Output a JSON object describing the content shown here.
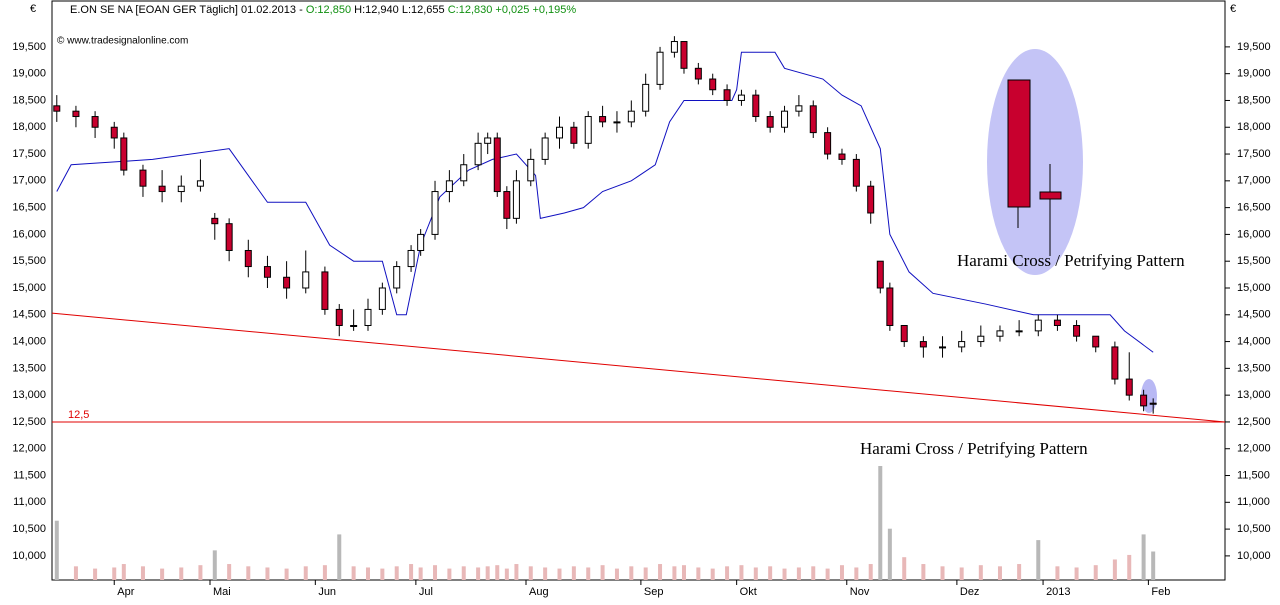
{
  "chart_data": {
    "type": "candlestick",
    "header": {
      "instrument": "E.ON SE NA [EOAN GER  Täglich] 01.02.2013 -",
      "open": "O:12,850",
      "hl": "H:12,940 L:12,655",
      "close": "C:12,830 +0,025 +0,195%"
    },
    "copyright": "© www.tradesignalonline.com",
    "currency": "€",
    "annotations": [
      "Harami Cross / Petrifying Pattern",
      "Harami Cross / Petrifying Pattern"
    ],
    "xlim": [
      -1,
      244
    ],
    "xticks": [
      {
        "value": 12,
        "label": "Apr"
      },
      {
        "value": 32,
        "label": "Mai"
      },
      {
        "value": 54,
        "label": "Jun"
      },
      {
        "value": 75,
        "label": "Jul"
      },
      {
        "value": 98,
        "label": "Aug"
      },
      {
        "value": 122,
        "label": "Sep"
      },
      {
        "value": 142,
        "label": "Okt"
      },
      {
        "value": 165,
        "label": "Nov"
      },
      {
        "value": 188,
        "label": "Dez"
      },
      {
        "value": 206,
        "label": "2013"
      },
      {
        "value": 228,
        "label": "Feb"
      }
    ],
    "ylim": [
      9550,
      20375
    ],
    "yticks": [
      {
        "value": 10000,
        "label": "10,000"
      },
      {
        "value": 10500,
        "label": "10,500"
      },
      {
        "value": 11000,
        "label": "11,000"
      },
      {
        "value": 11500,
        "label": "11,500"
      },
      {
        "value": 12000,
        "label": "12,000"
      },
      {
        "value": 12500,
        "label": "12,500"
      },
      {
        "value": 13000,
        "label": "13,000"
      },
      {
        "value": 13500,
        "label": "13,500"
      },
      {
        "value": 14000,
        "label": "14,000"
      },
      {
        "value": 14500,
        "label": "14,500"
      },
      {
        "value": 15000,
        "label": "15,000"
      },
      {
        "value": 15500,
        "label": "15,500"
      },
      {
        "value": 16000,
        "label": "16,000"
      },
      {
        "value": 16500,
        "label": "16,500"
      },
      {
        "value": 17000,
        "label": "17,000"
      },
      {
        "value": 17500,
        "label": "17,500"
      },
      {
        "value": 18000,
        "label": "18,000"
      },
      {
        "value": 18500,
        "label": "18,500"
      },
      {
        "value": 19000,
        "label": "19,000"
      },
      {
        "value": 19500,
        "label": "19,500"
      }
    ],
    "x": [
      0,
      4,
      8,
      12,
      14,
      18,
      22,
      26,
      30,
      33,
      36,
      40,
      44,
      48,
      52,
      56,
      59,
      62,
      65,
      68,
      71,
      74,
      76,
      79,
      82,
      85,
      88,
      90,
      92,
      94,
      96,
      99,
      102,
      105,
      108,
      111,
      114,
      117,
      120,
      123,
      126,
      129,
      131,
      134,
      137,
      140,
      143,
      146,
      149,
      152,
      155,
      158,
      161,
      164,
      167,
      170,
      172,
      174,
      177,
      181,
      185,
      189,
      193,
      197,
      201,
      205,
      209,
      213,
      217,
      221,
      224,
      227,
      229
    ],
    "ohlc": [
      [
        18400,
        18600,
        18100,
        18300
      ],
      [
        18300,
        18400,
        18000,
        18200
      ],
      [
        18200,
        18300,
        17800,
        18000
      ],
      [
        18000,
        18100,
        17600,
        17800
      ],
      [
        17800,
        17900,
        17100,
        17200
      ],
      [
        17200,
        17300,
        16700,
        16900
      ],
      [
        16900,
        17200,
        16600,
        16800
      ],
      [
        16800,
        17100,
        16600,
        16900
      ],
      [
        16900,
        17400,
        16800,
        17000
      ],
      [
        16300,
        16400,
        15900,
        16200
      ],
      [
        16200,
        16300,
        15500,
        15700
      ],
      [
        15700,
        15900,
        15200,
        15400
      ],
      [
        15400,
        15600,
        15000,
        15200
      ],
      [
        15200,
        15500,
        14800,
        15000
      ],
      [
        15000,
        15700,
        14900,
        15300
      ],
      [
        15300,
        15400,
        14500,
        14600
      ],
      [
        14600,
        14700,
        14100,
        14300
      ],
      [
        14300,
        14600,
        14200,
        14300
      ],
      [
        14300,
        14800,
        14200,
        14600
      ],
      [
        14600,
        15100,
        14500,
        15000
      ],
      [
        15000,
        15500,
        14900,
        15400
      ],
      [
        15400,
        15800,
        15300,
        15700
      ],
      [
        15700,
        16100,
        15600,
        16000
      ],
      [
        16000,
        17000,
        15900,
        16800
      ],
      [
        16800,
        17200,
        16600,
        17000
      ],
      [
        17000,
        17500,
        16900,
        17300
      ],
      [
        17300,
        17900,
        17200,
        17700
      ],
      [
        17700,
        17900,
        17500,
        17800
      ],
      [
        17800,
        17900,
        16700,
        16800
      ],
      [
        16800,
        16900,
        16100,
        16300
      ],
      [
        16300,
        17200,
        16200,
        17000
      ],
      [
        17000,
        17600,
        16900,
        17400
      ],
      [
        17400,
        17900,
        17300,
        17800
      ],
      [
        17800,
        18200,
        17600,
        18000
      ],
      [
        18000,
        18100,
        17600,
        17700
      ],
      [
        17700,
        18300,
        17600,
        18200
      ],
      [
        18200,
        18400,
        18000,
        18100
      ],
      [
        18100,
        18300,
        17900,
        18100
      ],
      [
        18100,
        18500,
        18000,
        18300
      ],
      [
        18300,
        19000,
        18200,
        18800
      ],
      [
        18800,
        19500,
        18700,
        19400
      ],
      [
        19400,
        19700,
        19300,
        19600
      ],
      [
        19600,
        19600,
        19000,
        19100
      ],
      [
        19100,
        19200,
        18800,
        18900
      ],
      [
        18900,
        19000,
        18600,
        18700
      ],
      [
        18700,
        18800,
        18400,
        18500
      ],
      [
        18500,
        18700,
        18400,
        18600
      ],
      [
        18600,
        18700,
        18100,
        18200
      ],
      [
        18200,
        18300,
        17900,
        18000
      ],
      [
        18000,
        18400,
        17900,
        18300
      ],
      [
        18300,
        18600,
        18200,
        18400
      ],
      [
        18400,
        18500,
        17800,
        17900
      ],
      [
        17900,
        18000,
        17400,
        17500
      ],
      [
        17500,
        17600,
        17300,
        17400
      ],
      [
        17400,
        17500,
        16800,
        16900
      ],
      [
        16900,
        17000,
        16200,
        16400
      ],
      [
        15500,
        15500,
        14900,
        15000
      ],
      [
        15000,
        15100,
        14200,
        14300
      ],
      [
        14300,
        14300,
        13900,
        14000
      ],
      [
        14000,
        14100,
        13700,
        13900
      ],
      [
        13900,
        14100,
        13700,
        13900
      ],
      [
        13900,
        14200,
        13800,
        14000
      ],
      [
        14000,
        14300,
        13900,
        14100
      ],
      [
        14100,
        14300,
        14000,
        14200
      ],
      [
        14200,
        14400,
        14100,
        14200
      ],
      [
        14200,
        14500,
        14100,
        14400
      ],
      [
        14400,
        14500,
        14200,
        14300
      ],
      [
        14300,
        14400,
        14000,
        14100
      ],
      [
        14100,
        14100,
        13800,
        13900
      ],
      [
        13900,
        14000,
        13200,
        13300
      ],
      [
        13300,
        13800,
        12900,
        13000
      ],
      [
        13000,
        13100,
        12700,
        12800
      ],
      [
        12850,
        12940,
        12655,
        12830
      ]
    ],
    "volume": [
      52,
      12,
      10,
      11,
      14,
      12,
      10,
      11,
      13,
      26,
      14,
      12,
      11,
      10,
      12,
      13,
      40,
      12,
      11,
      10,
      12,
      14,
      11,
      13,
      10,
      12,
      11,
      12,
      13,
      10,
      14,
      12,
      11,
      10,
      12,
      11,
      13,
      10,
      12,
      11,
      14,
      12,
      13,
      11,
      10,
      12,
      13,
      11,
      12,
      10,
      11,
      12,
      10,
      13,
      11,
      14,
      100,
      45,
      20,
      14,
      12,
      11,
      13,
      12,
      14,
      35,
      12,
      11,
      13,
      18,
      22,
      40,
      25
    ],
    "vlim": [
      0,
      100
    ],
    "envelope": {
      "color": "#1010c0",
      "x": [
        0,
        3,
        20,
        36,
        44,
        52,
        57,
        62,
        68,
        71,
        73,
        76,
        80,
        86,
        91,
        96,
        100,
        101,
        106,
        110,
        114,
        120,
        125,
        128,
        131,
        141,
        142,
        143,
        150,
        152,
        160,
        164,
        168,
        172,
        174,
        178,
        183,
        194,
        204,
        220,
        223,
        229
      ],
      "values": [
        16800,
        17300,
        17400,
        17600,
        16600,
        16600,
        15800,
        15500,
        15500,
        14500,
        14500,
        15800,
        16700,
        17200,
        17400,
        17500,
        17100,
        16300,
        16400,
        16500,
        16800,
        17000,
        17300,
        18100,
        18500,
        18500,
        18700,
        19400,
        19400,
        19100,
        18900,
        18600,
        18400,
        17600,
        16000,
        15300,
        14900,
        14700,
        14500,
        14500,
        14200,
        13800
      ]
    },
    "trendline": {
      "color": "#e00000",
      "x": [
        -1,
        244
      ],
      "values": [
        14530,
        12500
      ]
    },
    "level": {
      "value": 12500,
      "label": "12,5",
      "color": "#e00000"
    },
    "colors": {
      "down": "#c8002e",
      "up": "#ffffff",
      "volume": "#e8b8b8",
      "volume_spike": "#b8b8b8"
    }
  }
}
